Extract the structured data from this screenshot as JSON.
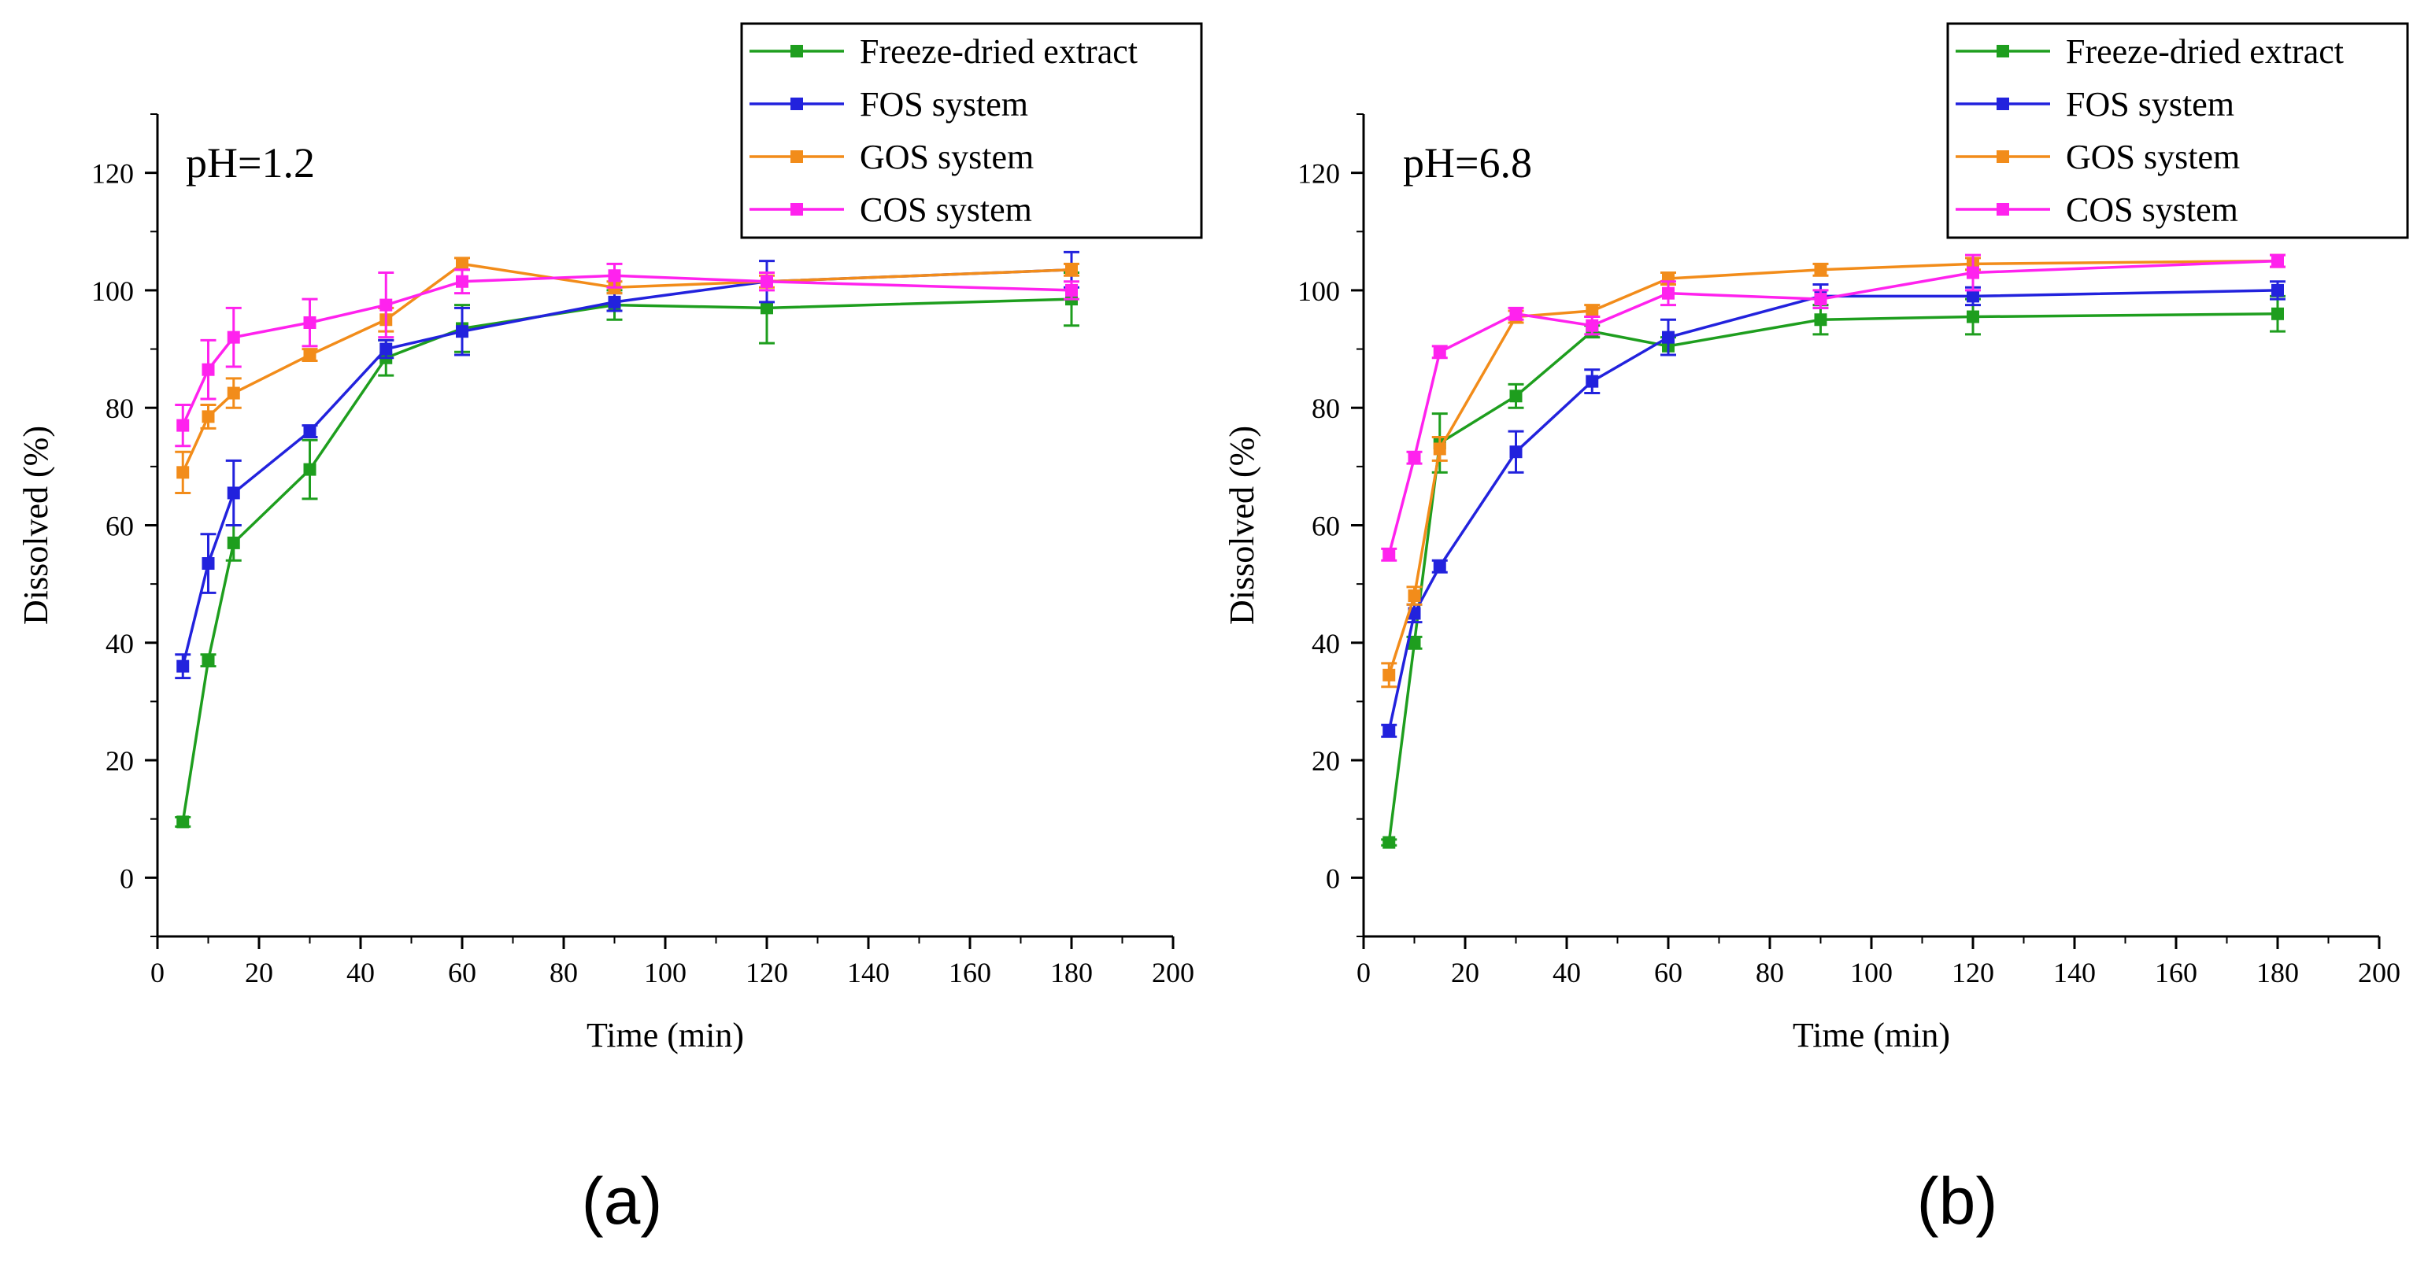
{
  "colors": {
    "Freeze-dried extract": "#1e9e1e",
    "FOS system": "#2222dd",
    "GOS system": "#f28c1a",
    "COS system": "#ff22ee"
  },
  "chart_data": [
    {
      "type": "line",
      "panel_label": "(a)",
      "annotation": "pH=1.2",
      "xlabel": "Time (min)",
      "ylabel": "Dissolved (%)",
      "xlim": [
        0,
        200
      ],
      "ylim": [
        -10,
        130
      ],
      "xticks": [
        0,
        20,
        40,
        60,
        80,
        100,
        120,
        140,
        160,
        180,
        200
      ],
      "yticks": [
        0,
        20,
        40,
        60,
        80,
        100,
        120
      ],
      "legend_position": "top-right",
      "x": [
        5,
        10,
        15,
        30,
        45,
        60,
        90,
        120,
        180
      ],
      "series": [
        {
          "name": "Freeze-dried extract",
          "values": [
            9.5,
            37,
            57,
            69.5,
            88.5,
            93.5,
            97.5,
            97,
            98.5
          ],
          "errors": [
            0.8,
            1,
            3,
            5,
            3,
            4,
            2.5,
            6,
            4.5
          ]
        },
        {
          "name": "FOS system",
          "values": [
            36,
            53.5,
            65.5,
            76,
            90,
            93,
            98,
            101.5,
            103.5
          ],
          "errors": [
            2,
            5,
            5.5,
            1,
            1.5,
            4,
            1.5,
            3.5,
            3
          ]
        },
        {
          "name": "GOS system",
          "values": [
            69,
            78.5,
            82.5,
            89,
            95,
            104.5,
            100.5,
            101.5,
            103.5
          ],
          "errors": [
            3.5,
            2,
            2.5,
            1,
            2,
            1,
            1,
            1,
            1
          ]
        },
        {
          "name": "COS system",
          "values": [
            77,
            86.5,
            92,
            94.5,
            97.5,
            101.5,
            102.5,
            101.5,
            100
          ],
          "errors": [
            3.5,
            5,
            5,
            4,
            5.5,
            2,
            2,
            1.5,
            1.5
          ]
        }
      ]
    },
    {
      "type": "line",
      "panel_label": "(b)",
      "annotation": "pH=6.8",
      "xlabel": "Time (min)",
      "ylabel": "Dissolved (%)",
      "xlim": [
        0,
        200
      ],
      "ylim": [
        -10,
        130
      ],
      "xticks": [
        0,
        20,
        40,
        60,
        80,
        100,
        120,
        140,
        160,
        180,
        200
      ],
      "yticks": [
        0,
        20,
        40,
        60,
        80,
        100,
        120
      ],
      "legend_position": "top-right",
      "x": [
        5,
        10,
        15,
        30,
        45,
        60,
        90,
        120,
        180
      ],
      "series": [
        {
          "name": "Freeze-dried extract",
          "values": [
            6,
            40,
            74,
            82,
            93,
            90.5,
            95,
            95.5,
            96
          ],
          "errors": [
            0.5,
            1,
            5,
            2,
            1,
            1.5,
            2.5,
            3,
            3
          ]
        },
        {
          "name": "FOS system",
          "values": [
            25,
            45,
            53,
            72.5,
            84.5,
            92,
            99,
            99,
            100
          ],
          "errors": [
            1,
            1.5,
            1,
            3.5,
            2,
            3,
            2,
            1.5,
            1.5
          ]
        },
        {
          "name": "GOS system",
          "values": [
            34.5,
            48,
            73,
            95.5,
            96.5,
            102,
            103.5,
            104.5,
            105
          ],
          "errors": [
            2,
            1.5,
            2,
            1,
            1,
            1,
            1,
            1,
            1
          ]
        },
        {
          "name": "COS system",
          "values": [
            55,
            71.5,
            89.5,
            96,
            94,
            99.5,
            98.5,
            103,
            105
          ],
          "errors": [
            1,
            1,
            1,
            1,
            1.5,
            2,
            1.5,
            3,
            1
          ]
        }
      ]
    }
  ]
}
